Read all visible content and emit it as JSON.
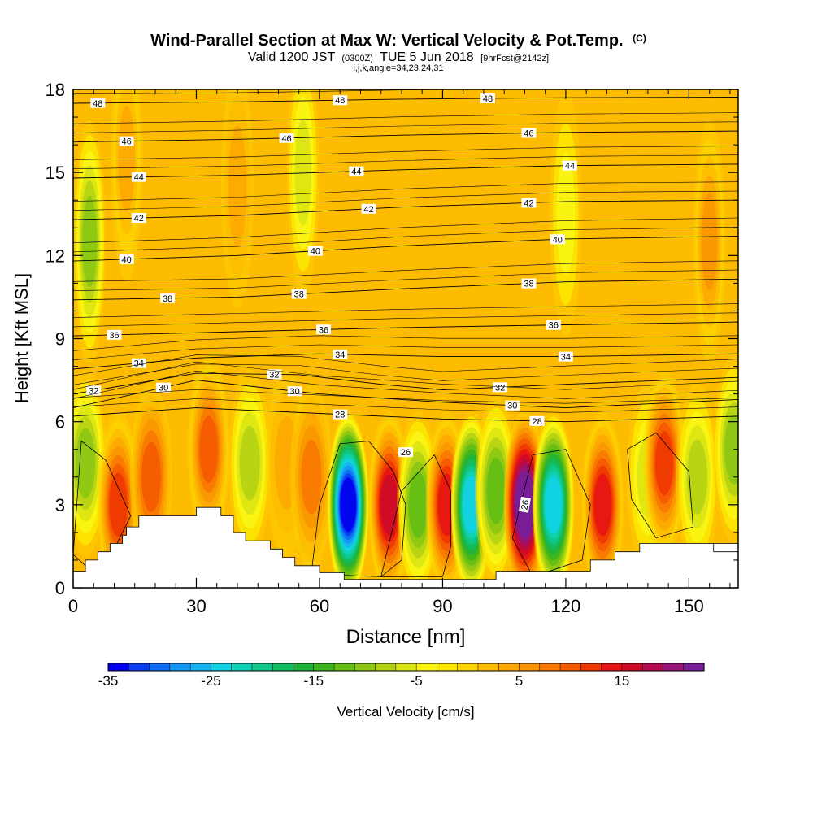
{
  "chart_data": {
    "type": "heatmap",
    "title": {
      "main": "Wind-Parallel Section at Max W: Vertical Velocity & Pot.Temp.",
      "main_mark": "(C)",
      "valid_prefix": "Valid 1200 JST",
      "valid_utc": "(0300Z)",
      "valid_date": "TUE 5 Jun 2018",
      "forecast": "[9hrFcst@2142z]",
      "params": "i,j,k,angle=34,23,24,31"
    },
    "xlabel": "Distance [nm]",
    "ylabel": "Height [Kft MSL]",
    "xlim": [
      0,
      162
    ],
    "ylim": [
      0,
      18
    ],
    "x_ticks": [
      "0",
      "30",
      "60",
      "90",
      "120",
      "150"
    ],
    "x_tick_values": [
      0,
      30,
      60,
      90,
      120,
      150
    ],
    "y_ticks": [
      "0",
      "3",
      "6",
      "9",
      "12",
      "15",
      "18"
    ],
    "y_tick_values": [
      0,
      3,
      6,
      9,
      12,
      15,
      18
    ],
    "colorbar": {
      "label": "Vertical Velocity [cm/s]",
      "tick_labels": [
        "-35",
        "-25",
        "-15",
        "-5",
        "5",
        "15"
      ],
      "tick_values": [
        -35,
        -25,
        -15,
        -5,
        5,
        15
      ],
      "min": -35,
      "max": 23,
      "step": 2
    },
    "velocity_cells": [
      {
        "x": 3,
        "y": 4.5,
        "w": -10
      },
      {
        "x": 4,
        "y": 12.5,
        "w": -11
      },
      {
        "x": 11,
        "y": 3.0,
        "w": 12
      },
      {
        "x": 13,
        "y": 15.5,
        "w": 4
      },
      {
        "x": 19,
        "y": 4.0,
        "w": 9
      },
      {
        "x": 33,
        "y": 5.0,
        "w": 10
      },
      {
        "x": 40,
        "y": 14.5,
        "w": 3
      },
      {
        "x": 43,
        "y": 4.5,
        "w": -9
      },
      {
        "x": 52,
        "y": 4.5,
        "w": 3
      },
      {
        "x": 56,
        "y": 15.0,
        "w": -6
      },
      {
        "x": 58,
        "y": 4.0,
        "w": 7
      },
      {
        "x": 67,
        "y": 3.0,
        "w": -35
      },
      {
        "x": 77,
        "y": 3.0,
        "w": 16
      },
      {
        "x": 84,
        "y": 3.0,
        "w": -13
      },
      {
        "x": 91,
        "y": 3.0,
        "w": 14
      },
      {
        "x": 97,
        "y": 3.0,
        "w": -25
      },
      {
        "x": 103,
        "y": 3.5,
        "w": -13
      },
      {
        "x": 110,
        "y": 3.0,
        "w": 23
      },
      {
        "x": 117,
        "y": 3.0,
        "w": -25
      },
      {
        "x": 120,
        "y": 13.5,
        "w": -4
      },
      {
        "x": 129,
        "y": 3.0,
        "w": 14
      },
      {
        "x": 140,
        "y": 4.0,
        "w": -6
      },
      {
        "x": 144,
        "y": 4.5,
        "w": 12
      },
      {
        "x": 152,
        "y": 4.0,
        "w": -8
      },
      {
        "x": 155,
        "y": 12.5,
        "w": 6
      },
      {
        "x": 161,
        "y": 5.0,
        "w": -11
      }
    ],
    "theta_contours": [
      {
        "level": 48,
        "points": [
          [
            0,
            17.5
          ],
          [
            40,
            17.55
          ],
          [
            80,
            17.65
          ],
          [
            120,
            17.7
          ],
          [
            162,
            17.72
          ]
        ],
        "label_x": [
          6,
          65,
          101
        ]
      },
      {
        "level": 46,
        "points": [
          [
            0,
            16.1
          ],
          [
            40,
            16.2
          ],
          [
            80,
            16.35
          ],
          [
            120,
            16.45
          ],
          [
            162,
            16.5
          ]
        ],
        "label_x": [
          13,
          52,
          111
        ]
      },
      {
        "level": 44,
        "points": [
          [
            0,
            14.8
          ],
          [
            40,
            14.9
          ],
          [
            80,
            15.1
          ],
          [
            120,
            15.25
          ],
          [
            162,
            15.3
          ]
        ],
        "label_x": [
          16,
          69,
          121
        ]
      },
      {
        "level": 42,
        "points": [
          [
            0,
            13.3
          ],
          [
            40,
            13.45
          ],
          [
            80,
            13.75
          ],
          [
            120,
            13.95
          ],
          [
            162,
            14.0
          ]
        ],
        "label_x": [
          16,
          72,
          111
        ]
      },
      {
        "level": 40,
        "points": [
          [
            0,
            11.8
          ],
          [
            40,
            12.0
          ],
          [
            80,
            12.35
          ],
          [
            120,
            12.6
          ],
          [
            162,
            12.7
          ]
        ],
        "label_x": [
          13,
          59,
          118
        ]
      },
      {
        "level": 38,
        "points": [
          [
            0,
            10.4
          ],
          [
            40,
            10.5
          ],
          [
            80,
            10.8
          ],
          [
            120,
            11.05
          ],
          [
            162,
            11.15
          ]
        ],
        "label_x": [
          23,
          55,
          111
        ]
      },
      {
        "level": 36,
        "points": [
          [
            0,
            9.1
          ],
          [
            40,
            9.25
          ],
          [
            80,
            9.4
          ],
          [
            120,
            9.5
          ],
          [
            162,
            9.6
          ]
        ],
        "label_x": [
          10,
          61,
          117
        ]
      },
      {
        "level": 34,
        "points": [
          [
            0,
            7.9
          ],
          [
            30,
            8.3
          ],
          [
            60,
            8.45
          ],
          [
            90,
            8.35
          ],
          [
            120,
            8.35
          ],
          [
            162,
            8.45
          ]
        ],
        "label_x": [
          16,
          65,
          120
        ]
      },
      {
        "level": 32,
        "points": [
          [
            0,
            7.0
          ],
          [
            30,
            7.75
          ],
          [
            55,
            7.7
          ],
          [
            75,
            7.35
          ],
          [
            90,
            7.15
          ],
          [
            120,
            7.35
          ],
          [
            162,
            7.6
          ]
        ],
        "label_x": [
          5,
          49,
          104
        ]
      },
      {
        "level": 30,
        "points": [
          [
            0,
            6.5
          ],
          [
            30,
            7.5
          ],
          [
            60,
            7.0
          ],
          [
            90,
            6.7
          ],
          [
            120,
            6.5
          ],
          [
            162,
            6.8
          ]
        ],
        "label_x": [
          22,
          54,
          107
        ]
      },
      {
        "level": 28,
        "points": [
          [
            0,
            6.2
          ],
          [
            30,
            6.5
          ],
          [
            60,
            6.3
          ],
          [
            90,
            6.1
          ],
          [
            120,
            6.0
          ],
          [
            162,
            6.2
          ]
        ],
        "label_x": [
          65,
          113
        ]
      }
    ],
    "contour_26_label": {
      "level": 26,
      "x": 81,
      "y": 4.9,
      "rot_label_x": 110,
      "rot_label_y": 3.0
    },
    "terrain": [
      [
        0,
        0.6
      ],
      [
        3,
        0.6
      ],
      [
        3,
        1.0
      ],
      [
        6,
        1.0
      ],
      [
        6,
        1.3
      ],
      [
        9,
        1.3
      ],
      [
        9,
        1.6
      ],
      [
        12,
        1.6
      ],
      [
        12,
        1.9
      ],
      [
        13,
        1.9
      ],
      [
        13,
        2.2
      ],
      [
        16,
        2.2
      ],
      [
        16,
        2.6
      ],
      [
        30,
        2.6
      ],
      [
        30,
        2.9
      ],
      [
        36,
        2.9
      ],
      [
        36,
        2.6
      ],
      [
        39,
        2.6
      ],
      [
        39,
        2.0
      ],
      [
        42,
        2.0
      ],
      [
        42,
        1.7
      ],
      [
        48,
        1.7
      ],
      [
        48,
        1.4
      ],
      [
        51,
        1.4
      ],
      [
        51,
        1.1
      ],
      [
        54,
        1.1
      ],
      [
        54,
        0.8
      ],
      [
        60,
        0.8
      ],
      [
        60,
        0.55
      ],
      [
        66,
        0.55
      ],
      [
        66,
        0.3
      ],
      [
        103,
        0.3
      ],
      [
        103,
        0.6
      ],
      [
        126,
        0.6
      ],
      [
        126,
        1.0
      ],
      [
        132,
        1.0
      ],
      [
        132,
        1.3
      ],
      [
        138,
        1.3
      ],
      [
        138,
        1.6
      ],
      [
        162,
        1.6
      ],
      [
        162,
        1.3
      ],
      [
        156,
        1.3
      ],
      [
        156,
        1.6
      ],
      [
        162,
        1.6
      ]
    ],
    "grid": false
  }
}
